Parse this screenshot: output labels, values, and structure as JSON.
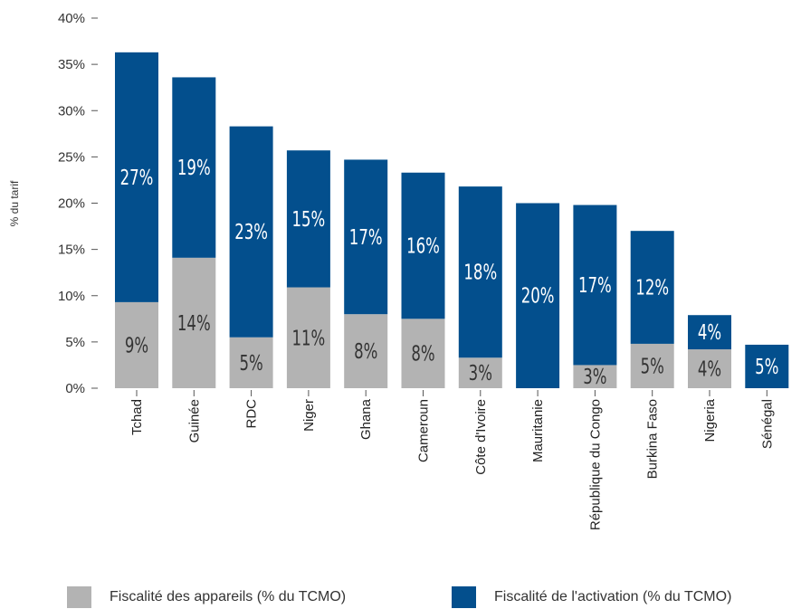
{
  "chart_data": {
    "type": "bar",
    "stacked": true,
    "categories": [
      "Tchad",
      "Guinée",
      "RDC",
      "Niger",
      "Ghana",
      "Cameroun",
      "Côte d'Ivoire",
      "Mauritanie",
      "République du Congo",
      "Burkina Faso",
      "Nigeria",
      "Sénégal"
    ],
    "series": [
      {
        "name": "Fiscalité des appareils (% du TCMO)",
        "color": "#b3b3b3",
        "values": [
          9.3,
          14.1,
          5.5,
          10.9,
          8.0,
          7.5,
          3.3,
          0,
          2.5,
          4.8,
          4.2,
          0
        ],
        "labels": [
          "9%",
          "14%",
          "5%",
          "11%",
          "8%",
          "8%",
          "3%",
          "",
          "3%",
          "5%",
          "4%",
          ""
        ]
      },
      {
        "name": "Fiscalité de l'activation (% du TCMO)",
        "color": "#034f8d",
        "values": [
          27.0,
          19.5,
          22.8,
          14.8,
          16.7,
          15.8,
          18.5,
          20.0,
          17.3,
          12.2,
          3.7,
          4.7
        ],
        "labels": [
          "27%",
          "19%",
          "23%",
          "15%",
          "17%",
          "16%",
          "18%",
          "20%",
          "17%",
          "12%",
          "4%",
          "5%"
        ]
      }
    ],
    "ylabel": "% du tarif",
    "ylim": [
      0,
      40
    ],
    "yticks": [
      0,
      5,
      10,
      15,
      20,
      25,
      30,
      35,
      40
    ],
    "ytick_labels": [
      "0%",
      "5%",
      "10%",
      "15%",
      "20%",
      "25%",
      "30%",
      "35%",
      "40%"
    ],
    "grid": false,
    "legend_position": "bottom"
  }
}
